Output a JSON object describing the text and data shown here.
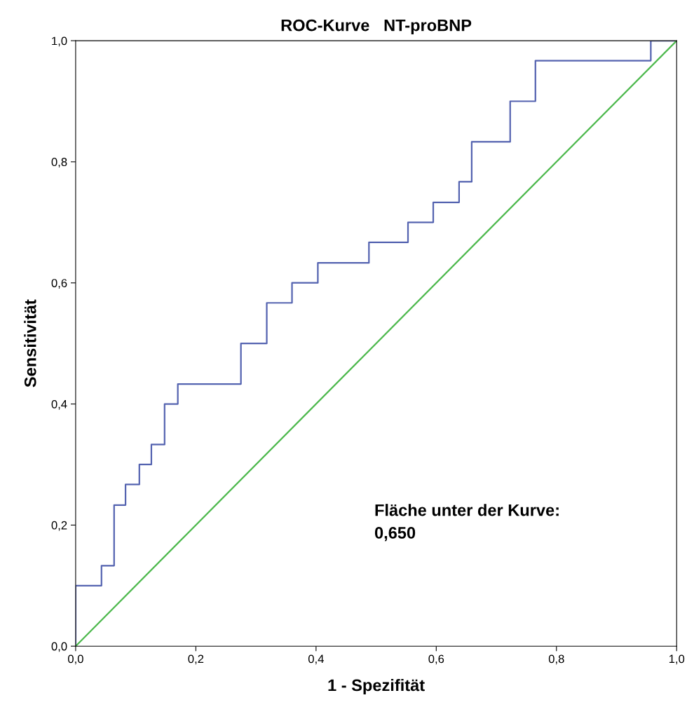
{
  "chart_data": {
    "type": "step",
    "title": "ROC-Kurve   NT-proBNP",
    "xlabel": "1 - Spezifität",
    "ylabel": "Sensitivität",
    "series": [
      {
        "color": "#5463b0",
        "x": [
          0,
          0,
          0.043,
          0.064,
          0.083,
          0.106,
          0.126,
          0.148,
          0.17,
          0.275,
          0.318,
          0.36,
          0.403,
          0.488,
          0.553,
          0.595,
          0.638,
          0.659,
          0.723,
          0.765,
          0.957,
          1.0
        ],
        "values": [
          0,
          0.1,
          0.133,
          0.233,
          0.267,
          0.3,
          0.333,
          0.4,
          0.433,
          0.5,
          0.567,
          0.6,
          0.633,
          0.667,
          0.7,
          0.733,
          0.767,
          0.833,
          0.9,
          0.967,
          1.0,
          1.0
        ]
      },
      {
        "type": "line",
        "color": "#4cb84c",
        "x": [
          0,
          1
        ],
        "values": [
          0,
          1
        ]
      }
    ],
    "xlim": [
      0,
      1
    ],
    "ylim": [
      0,
      1
    ],
    "xticks": [
      {
        "value": 0,
        "label": "0,0"
      },
      {
        "value": 0.2,
        "label": "0,2"
      },
      {
        "value": 0.4,
        "label": "0,4"
      },
      {
        "value": 0.6,
        "label": "0,6"
      },
      {
        "value": 0.8,
        "label": "0,8"
      },
      {
        "value": 1,
        "label": "1,0"
      }
    ],
    "yticks": [
      {
        "value": 0,
        "label": "0,0"
      },
      {
        "value": 0.2,
        "label": "0,2"
      },
      {
        "value": 0.4,
        "label": "0,4"
      },
      {
        "value": 0.6,
        "label": "0,6"
      },
      {
        "value": 0.8,
        "label": "0,8"
      },
      {
        "value": 1,
        "label": "1,0"
      }
    ],
    "annotations": [
      "Fläche unter der Kurve:\n0,650"
    ],
    "grid": false,
    "legend": false
  }
}
